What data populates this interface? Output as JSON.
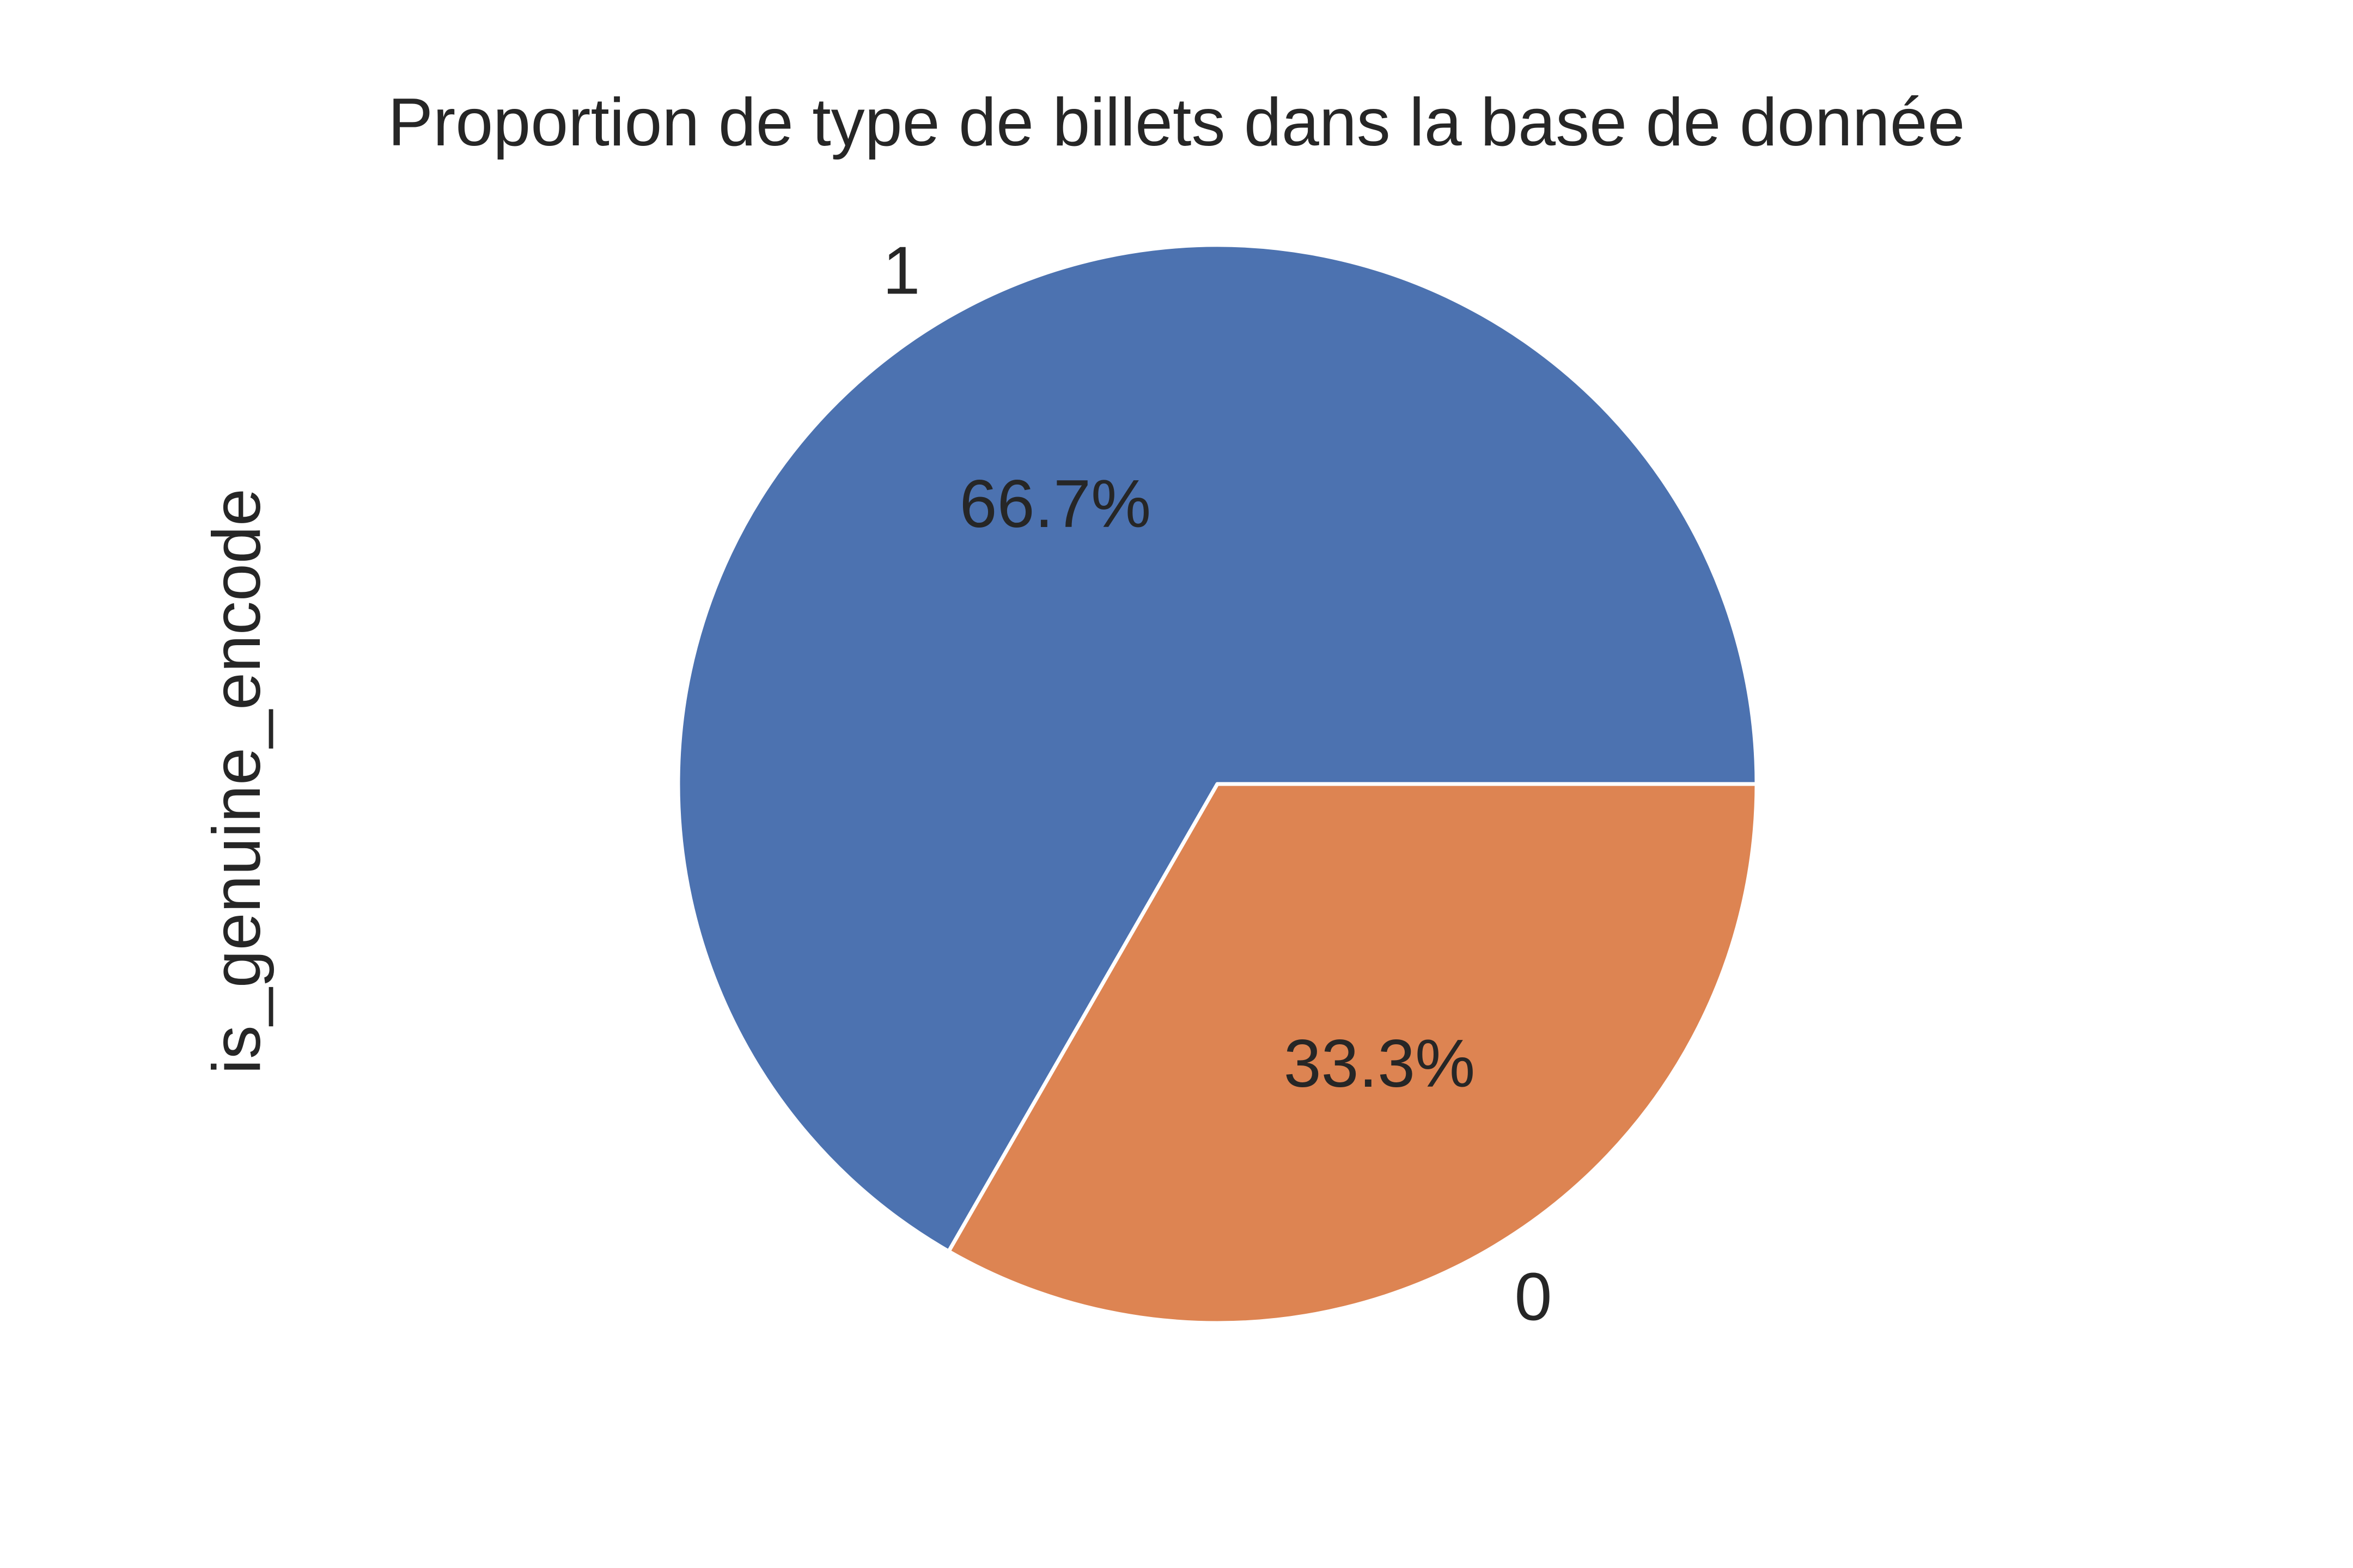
{
  "chart_data": {
    "type": "pie",
    "title": "Proportion de type de billets dans la base de donnée",
    "ylabel": "is_genuine_encode",
    "categories": [
      "1",
      "0"
    ],
    "values": [
      66.7,
      33.3
    ],
    "autopct_labels": [
      "66.7%",
      "33.3%"
    ],
    "colors": [
      "#4c72b0",
      "#dd8452"
    ],
    "edge_color": "#ffffff",
    "legend": "none"
  }
}
